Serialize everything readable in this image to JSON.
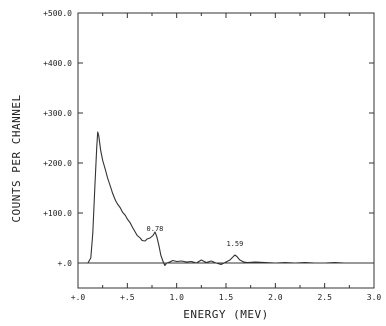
{
  "chart_data": {
    "type": "line",
    "title": "",
    "xlabel": "ENERGY (MEV)",
    "ylabel": "COUNTS PER CHANNEL",
    "xlim": [
      0,
      3.0
    ],
    "ylim": [
      -50,
      500
    ],
    "grid": false,
    "x_ticks": [
      {
        "value": 0.0,
        "label": "+.0"
      },
      {
        "value": 0.5,
        "label": "+.5"
      },
      {
        "value": 1.0,
        "label": "1.0"
      },
      {
        "value": 1.5,
        "label": "1.5"
      },
      {
        "value": 2.0,
        "label": "2.0"
      },
      {
        "value": 2.5,
        "label": "2.5"
      },
      {
        "value": 3.0,
        "label": "3.0"
      }
    ],
    "y_ticks": [
      {
        "value": 0,
        "label": "+.0"
      },
      {
        "value": 100,
        "label": "+100.0"
      },
      {
        "value": 200,
        "label": "+200.0"
      },
      {
        "value": 300,
        "label": "+300.0"
      },
      {
        "value": 400,
        "label": "+400.0"
      },
      {
        "value": 500,
        "label": "+500.0"
      }
    ],
    "annotations": [
      {
        "text": "0.78",
        "x": 0.78,
        "y": 52
      },
      {
        "text": "1.59",
        "x": 1.59,
        "y": 22
      }
    ],
    "series": [
      {
        "x": [
          0.1,
          0.13,
          0.15,
          0.17,
          0.19,
          0.2,
          0.21,
          0.23,
          0.25,
          0.28,
          0.3,
          0.33,
          0.35,
          0.38,
          0.4,
          0.43,
          0.45,
          0.48,
          0.5,
          0.53,
          0.55,
          0.58,
          0.6,
          0.63,
          0.65,
          0.68,
          0.7,
          0.73,
          0.76,
          0.78,
          0.8,
          0.82,
          0.84,
          0.86,
          0.88,
          0.9,
          0.93,
          0.96,
          1.0,
          1.05,
          1.1,
          1.15,
          1.2,
          1.25,
          1.3,
          1.35,
          1.4,
          1.45,
          1.5,
          1.54,
          1.57,
          1.59,
          1.61,
          1.64,
          1.68,
          1.72,
          1.8,
          1.9,
          2.0,
          2.1,
          2.2,
          2.3,
          2.4,
          2.5,
          2.6,
          2.7,
          2.8,
          2.9,
          3.0
        ],
        "y": [
          0,
          10,
          60,
          150,
          230,
          262,
          255,
          225,
          205,
          185,
          170,
          152,
          140,
          125,
          118,
          110,
          102,
          95,
          88,
          80,
          72,
          62,
          55,
          50,
          45,
          44,
          48,
          50,
          55,
          62,
          52,
          35,
          15,
          4,
          -5,
          0,
          2,
          5,
          3,
          4,
          2,
          3,
          0,
          6,
          1,
          4,
          0,
          -3,
          2,
          6,
          12,
          16,
          13,
          6,
          2,
          1,
          2,
          1,
          0,
          1,
          0,
          1,
          0,
          0,
          1,
          0,
          0,
          0,
          0
        ]
      }
    ]
  }
}
